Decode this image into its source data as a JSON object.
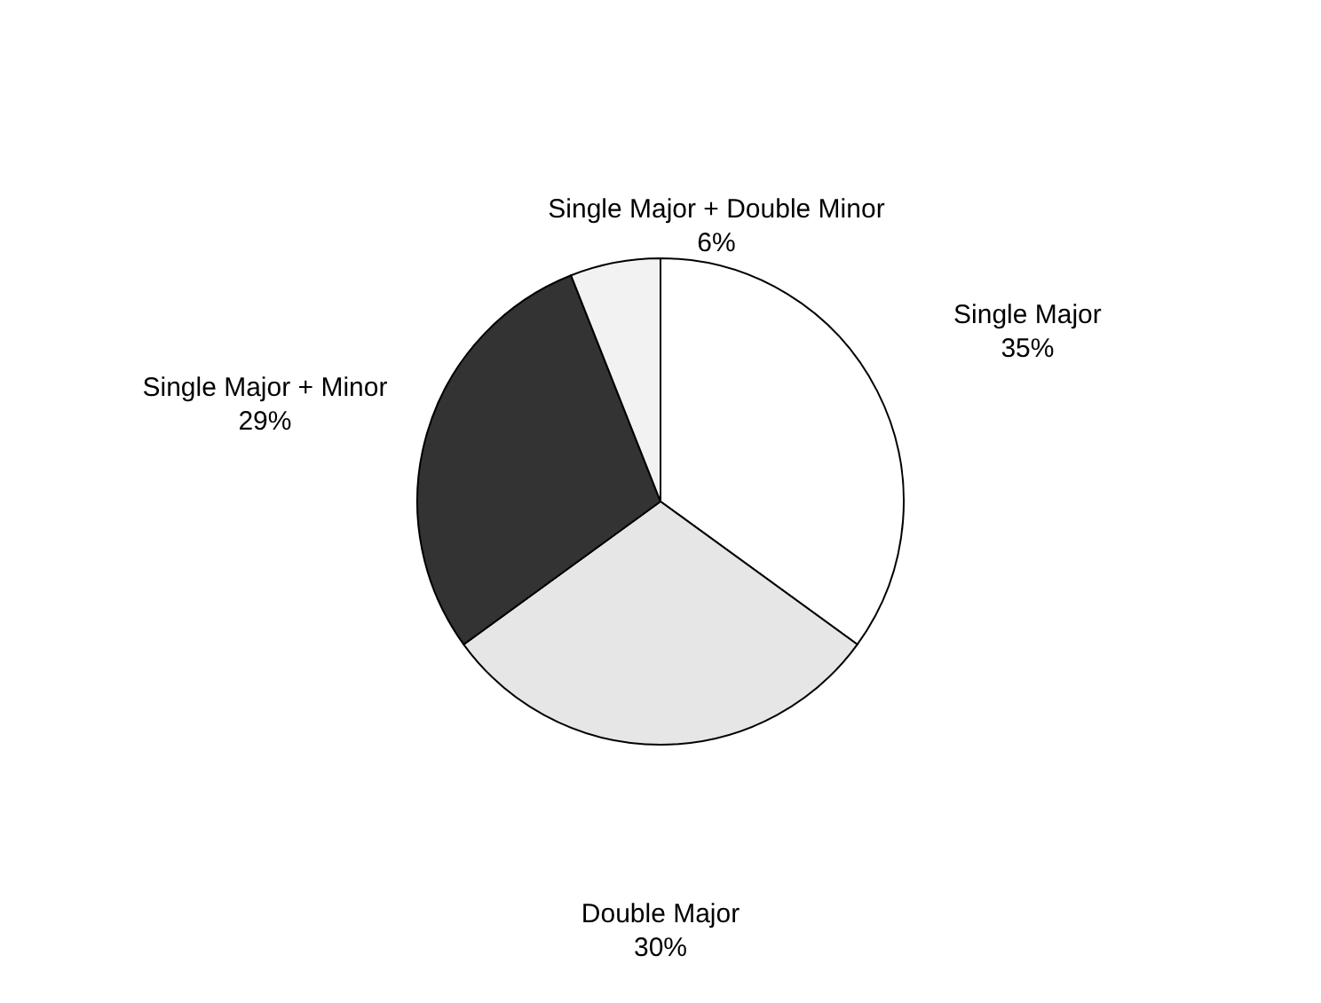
{
  "chart_data": {
    "type": "pie",
    "categories": [
      "Single Major",
      "Double Major",
      "Single Major + Minor",
      "Single Major + Double Minor"
    ],
    "values": [
      35,
      30,
      29,
      6
    ],
    "value_labels": [
      "35%",
      "30%",
      "29%",
      "6%"
    ],
    "colors": [
      "#ffffff",
      "#e6e6e6",
      "#333333",
      "#f2f2f2"
    ]
  }
}
